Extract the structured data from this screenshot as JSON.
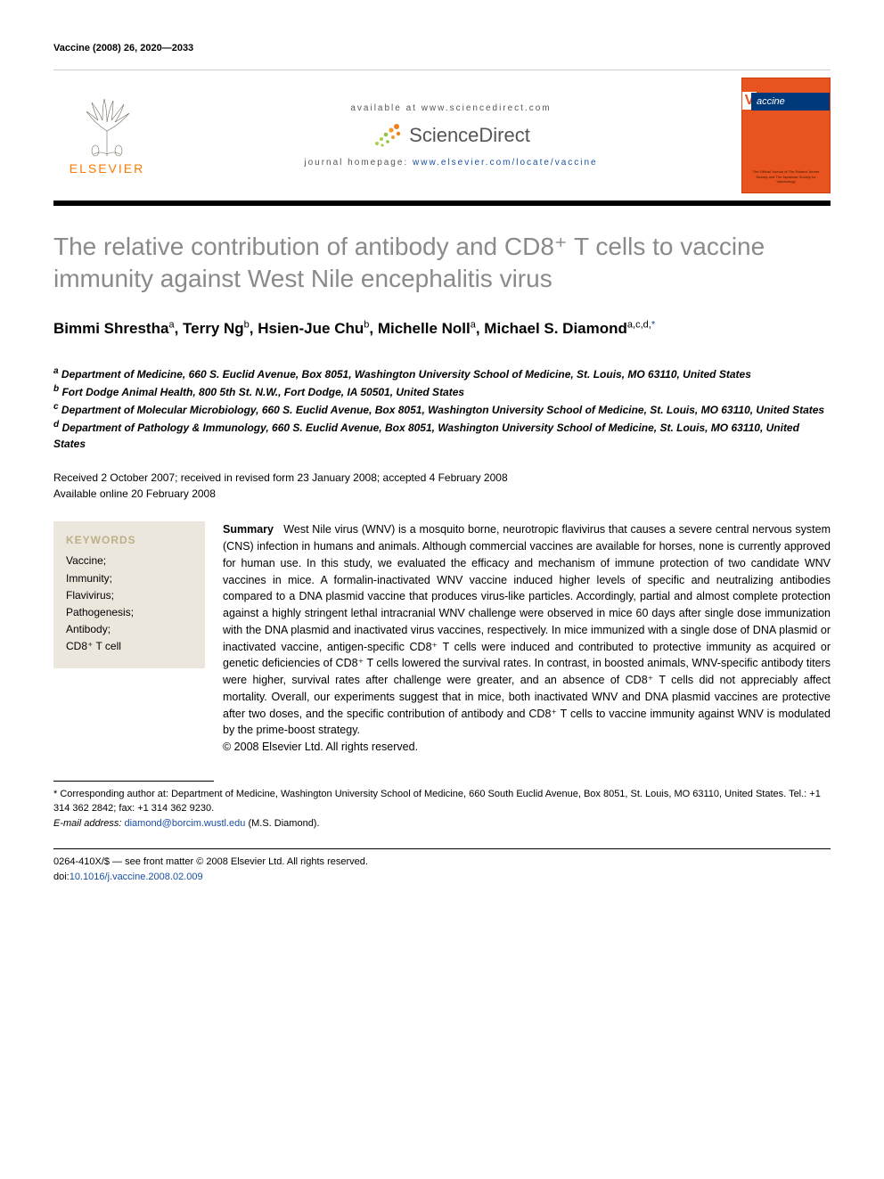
{
  "citation": "Vaccine (2008) 26, 2020—2033",
  "header": {
    "available_at": "available at www.sciencedirect.com",
    "sciencedirect": "ScienceDirect",
    "journal_home_label": "journal homepage: ",
    "journal_home_url": "www.elsevier.com/locate/vaccine",
    "elsevier_label": "ELSEVIER",
    "cover_journal": "accine",
    "cover_v": "V",
    "colors": {
      "cover_bg": "#e8531f",
      "cover_bar": "#003a7a",
      "elsevier_orange": "#ff7a00",
      "link_blue": "#1a4fa3",
      "title_gray": "#8a8a8a",
      "kw_box_bg": "#ece7dd",
      "kw_head": "#bdb089"
    }
  },
  "title": "The relative contribution of antibody and CD8⁺ T cells to vaccine immunity against West Nile encephalitis virus",
  "authors_html": "Bimmi Shrestha<sup>a</sup>, Terry Ng<sup>b</sup>, Hsien-Jue Chu<sup>b</sup>, Michelle Noll<sup>a</sup>, Michael S. Diamond<sup>a,c,d,</sup><sup class=\"corr\">*</sup>",
  "affiliations": {
    "a": "Department of Medicine, 660 S. Euclid Avenue, Box 8051, Washington University School of Medicine, St. Louis, MO 63110, United States",
    "b": "Fort Dodge Animal Health, 800 5th St. N.W., Fort Dodge, IA 50501, United States",
    "c": "Department of Molecular Microbiology, 660 S. Euclid Avenue, Box 8051, Washington University School of Medicine, St. Louis, MO 63110, United States",
    "d": "Department of Pathology & Immunology, 660 S. Euclid Avenue, Box 8051, Washington University School of Medicine, St. Louis, MO 63110, United States"
  },
  "dates": {
    "received": "Received 2 October 2007; received in revised form 23 January 2008; accepted 4 February 2008",
    "available": "Available online 20 February 2008"
  },
  "keywords": {
    "heading": "KEYWORDS",
    "items": [
      "Vaccine;",
      "Immunity;",
      "Flavivirus;",
      "Pathogenesis;",
      "Antibody;",
      "CD8⁺ T cell"
    ]
  },
  "summary": {
    "lead": "Summary",
    "body": "West Nile virus (WNV) is a mosquito borne, neurotropic flavivirus that causes a severe central nervous system (CNS) infection in humans and animals. Although commercial vaccines are available for horses, none is currently approved for human use. In this study, we evaluated the efficacy and mechanism of immune protection of two candidate WNV vaccines in mice. A formalin-inactivated WNV vaccine induced higher levels of specific and neutralizing antibodies compared to a DNA plasmid vaccine that produces virus-like particles. Accordingly, partial and almost complete protection against a highly stringent lethal intracranial WNV challenge were observed in mice 60 days after single dose immunization with the DNA plasmid and inactivated virus vaccines, respectively. In mice immunized with a single dose of DNA plasmid or inactivated vaccine, antigen-specific CD8⁺ T cells were induced and contributed to protective immunity as acquired or genetic deficiencies of CD8⁺ T cells lowered the survival rates. In contrast, in boosted animals, WNV-specific antibody titers were higher, survival rates after challenge were greater, and an absence of CD8⁺ T cells did not appreciably affect mortality. Overall, our experiments suggest that in mice, both inactivated WNV and DNA plasmid vaccines are protective after two doses, and the specific contribution of antibody and CD8⁺ T cells to vaccine immunity against WNV is modulated by the prime-boost strategy.",
    "copyright": "© 2008 Elsevier Ltd. All rights reserved."
  },
  "footnotes": {
    "corresponding": "* Corresponding author at: Department of Medicine, Washington University School of Medicine, 660 South Euclid Avenue, Box 8051, St. Louis, MO 63110, United States. Tel.: +1 314 362 2842; fax: +1 314 362 9230.",
    "email_label": "E-mail address:",
    "email": "diamond@borcim.wustl.edu",
    "email_paren": "(M.S. Diamond)."
  },
  "footer": {
    "issn_line": "0264-410X/$ — see front matter © 2008 Elsevier Ltd. All rights reserved.",
    "doi_label": "doi:",
    "doi": "10.1016/j.vaccine.2008.02.009"
  }
}
